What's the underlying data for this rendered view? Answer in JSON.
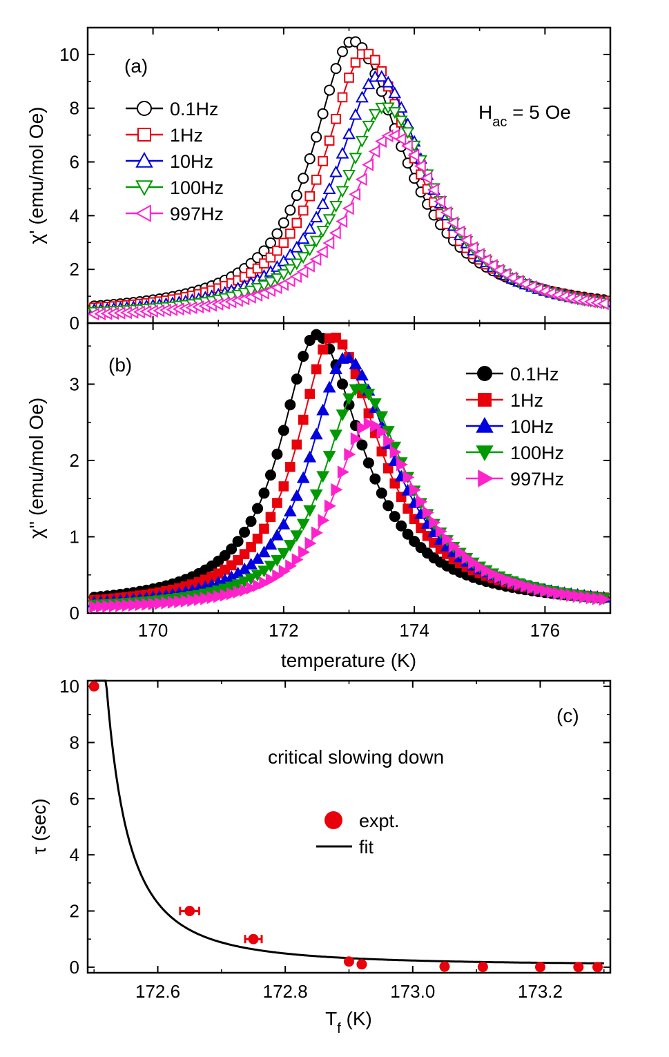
{
  "chart_data": [
    {
      "panel": "a",
      "type": "line",
      "panel_label": "(a)",
      "annotation": {
        "main": "H",
        "sub": "ac",
        "rest": " = 5 Oe"
      },
      "ylabel": "χ' (emu/mol Oe)",
      "xlim": [
        169,
        177
      ],
      "ylim": [
        0,
        11
      ],
      "yticks": [
        0,
        2,
        4,
        6,
        8,
        10
      ],
      "legend_position": "upper-left",
      "marker_fill": "open",
      "series": [
        {
          "name": "0.1Hz",
          "color": "#000000",
          "marker": "circle",
          "peak_x": 173.05,
          "peak_y": 10.5,
          "base_y": 0.28,
          "w_left": 0.75,
          "w_right": 0.95
        },
        {
          "name": "1Hz",
          "color": "#e8000b",
          "marker": "square",
          "peak_x": 173.25,
          "peak_y": 10.05,
          "base_y": 0.24,
          "w_left": 0.78,
          "w_right": 0.92
        },
        {
          "name": "10Hz",
          "color": "#0000e0",
          "marker": "triangle-up",
          "peak_x": 173.45,
          "peak_y": 9.2,
          "base_y": 0.2,
          "w_left": 0.8,
          "w_right": 0.9
        },
        {
          "name": "100Hz",
          "color": "#009a00",
          "marker": "triangle-down",
          "peak_x": 173.55,
          "peak_y": 8.05,
          "base_y": 0.17,
          "w_left": 0.8,
          "w_right": 0.95
        },
        {
          "name": "997Hz",
          "color": "#ff22cc",
          "marker": "triangle-left",
          "peak_x": 173.65,
          "peak_y": 7.0,
          "base_y": 0.13,
          "w_left": 0.8,
          "w_right": 1.0
        }
      ]
    },
    {
      "panel": "b",
      "type": "line",
      "panel_label": "(b)",
      "ylabel": "χ'' (emu/mol Oe)",
      "xlabel": "temperature (K)",
      "xlim": [
        169,
        177
      ],
      "ylim": [
        0,
        3.8
      ],
      "yticks": [
        0,
        1,
        2,
        3
      ],
      "xticks": [
        170,
        172,
        174,
        176
      ],
      "legend_position": "upper-right",
      "marker_fill": "filled",
      "series": [
        {
          "name": "0.1Hz",
          "color": "#000000",
          "marker": "circle",
          "peak_x": 172.5,
          "peak_y": 3.65,
          "base_y": 0.07,
          "w_left": 0.68,
          "w_right": 0.85
        },
        {
          "name": "1Hz",
          "color": "#e8000b",
          "marker": "square",
          "peak_x": 172.75,
          "peak_y": 3.62,
          "base_y": 0.05,
          "w_left": 0.68,
          "w_right": 0.88
        },
        {
          "name": "10Hz",
          "color": "#0000e0",
          "marker": "triangle-up",
          "peak_x": 172.95,
          "peak_y": 3.35,
          "base_y": 0.04,
          "w_left": 0.68,
          "w_right": 0.9
        },
        {
          "name": "100Hz",
          "color": "#009a00",
          "marker": "triangle-down",
          "peak_x": 173.15,
          "peak_y": 2.95,
          "base_y": 0.03,
          "w_left": 0.68,
          "w_right": 0.92
        },
        {
          "name": "997Hz",
          "color": "#ff22cc",
          "marker": "triangle-right",
          "peak_x": 173.3,
          "peak_y": 2.48,
          "base_y": 0.02,
          "w_left": 0.68,
          "w_right": 0.95
        }
      ]
    },
    {
      "panel": "c",
      "type": "scatter",
      "panel_label": "(c)",
      "annotation_text": "critical slowing down",
      "xlabel": {
        "main": "T",
        "sub": "f",
        "rest": " (K)"
      },
      "ylabel": "τ (sec)",
      "xlim": [
        172.49,
        173.31
      ],
      "ylim": [
        -0.2,
        10.2
      ],
      "xticks": [
        "172.6",
        "172.8",
        "173.0",
        "173.2"
      ],
      "xtick_values": [
        172.6,
        172.8,
        173.0,
        173.2
      ],
      "yticks": [
        0,
        2,
        4,
        6,
        8,
        10
      ],
      "legend_position": "center",
      "series": [
        {
          "name": "expt.",
          "color": "#e8000b",
          "marker": "circle",
          "points": [
            {
              "x": 172.5,
              "y": 10.0,
              "xerr": 0.0
            },
            {
              "x": 172.65,
              "y": 2.0,
              "xerr": 0.015
            },
            {
              "x": 172.75,
              "y": 1.0,
              "xerr": 0.013
            },
            {
              "x": 172.9,
              "y": 0.2,
              "xerr": 0.0
            },
            {
              "x": 172.92,
              "y": 0.1,
              "xerr": 0.0
            },
            {
              "x": 173.05,
              "y": 0.02,
              "xerr": 0.0
            },
            {
              "x": 173.11,
              "y": 0.01,
              "xerr": 0.0
            },
            {
              "x": 173.2,
              "y": 0.005,
              "xerr": 0.0
            },
            {
              "x": 173.26,
              "y": 0.003,
              "xerr": 0.0
            },
            {
              "x": 173.29,
              "y": 0.002,
              "xerr": 0.0
            }
          ]
        },
        {
          "name": "fit",
          "color": "#000000",
          "type": "line",
          "model": {
            "tau_inf": 0.06,
            "A": 0.055,
            "x0": 172.45,
            "p": 1.95
          },
          "x_range": [
            172.5,
            173.3
          ]
        }
      ]
    }
  ]
}
